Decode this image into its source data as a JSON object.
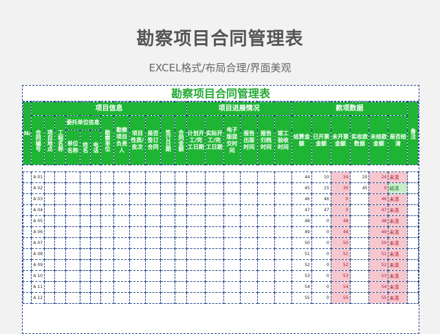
{
  "page": {
    "title": "勘察项目合同管理表",
    "subtitle": "EXCEL格式/布局合理/界面美观"
  },
  "sheet": {
    "title": "勘察项目合同管理表",
    "headers": {
      "no": "№",
      "group_project": "项目信息",
      "group_progress": "项目进展情况",
      "group_payment": "款项数据",
      "remark": "备注",
      "contract_no": "合同编号",
      "location": "项目地点",
      "project_name": "工程名称",
      "client": "委托单位信息",
      "unit_name": "单位名称",
      "name": "姓名",
      "phone": "电话",
      "survey_unit": "勘察单位",
      "survey_manager": "勘察项目负责人",
      "project_nature": "项目性质/批次",
      "signed": "是否签订合同",
      "sign_date": "签订日期",
      "amount": "合同金额",
      "plan_dates": "计划开工/完工日期",
      "actual_dates": "实际开工/完工日期",
      "e_submit": "电子版提交时间",
      "report_publish": "报告出版时间",
      "report_archive": "报告归档时间",
      "completion": "竣工验收时间",
      "settle_amount": "结算金额",
      "invoiced": "已开票金额",
      "uninvoiced": "未开票金额",
      "received": "实收款数据",
      "outstanding": "未结款金额",
      "settled": "是否结清"
    },
    "rows": [
      {
        "code": "A 01",
        "settle": "44",
        "invoiced": "10",
        "uninvoiced": "34",
        "received": "20",
        "outstanding": "24",
        "status": "未清"
      },
      {
        "code": "A 02",
        "settle": "45",
        "invoiced": "15",
        "uninvoiced": "30",
        "received": "45",
        "outstanding": "0",
        "status": "结清"
      },
      {
        "code": "A 03",
        "settle": "46",
        "invoiced": "46",
        "uninvoiced": "0",
        "received": "",
        "outstanding": "46",
        "status": "未清"
      },
      {
        "code": "A 04",
        "settle": "47",
        "invoiced": "47",
        "uninvoiced": "0",
        "received": "",
        "outstanding": "47",
        "status": "未清"
      },
      {
        "code": "A 05",
        "settle": "48",
        "invoiced": "0",
        "uninvoiced": "48",
        "received": "",
        "outstanding": "48",
        "status": "未清"
      },
      {
        "code": "A 06",
        "settle": "49",
        "invoiced": "0",
        "uninvoiced": "49",
        "received": "",
        "outstanding": "49",
        "status": "未清"
      },
      {
        "code": "A 07",
        "settle": "50",
        "invoiced": "0",
        "uninvoiced": "50",
        "received": "",
        "outstanding": "50",
        "status": "未清"
      },
      {
        "code": "A 08",
        "settle": "51",
        "invoiced": "0",
        "uninvoiced": "51",
        "received": "",
        "outstanding": "51",
        "status": "未清"
      },
      {
        "code": "A 09",
        "settle": "52",
        "invoiced": "0",
        "uninvoiced": "52",
        "received": "",
        "outstanding": "52",
        "status": "未清"
      },
      {
        "code": "A 10",
        "settle": "53",
        "invoiced": "0",
        "uninvoiced": "53",
        "received": "",
        "outstanding": "53",
        "status": "未清"
      },
      {
        "code": "A 11",
        "settle": "54",
        "invoiced": "0",
        "uninvoiced": "54",
        "received": "",
        "outstanding": "54",
        "status": "未清"
      },
      {
        "code": "A 12",
        "settle": "55",
        "invoiced": "0",
        "uninvoiced": "55",
        "received": "",
        "outstanding": "55",
        "status": "未清"
      }
    ]
  },
  "colors": {
    "header_green": "#1fb534",
    "title_green": "#26a836",
    "grid_blue": "#23458a",
    "pink_fill": "#f6c7ce",
    "pink_text": "#b0172a",
    "green_fill": "#c8eec9"
  }
}
